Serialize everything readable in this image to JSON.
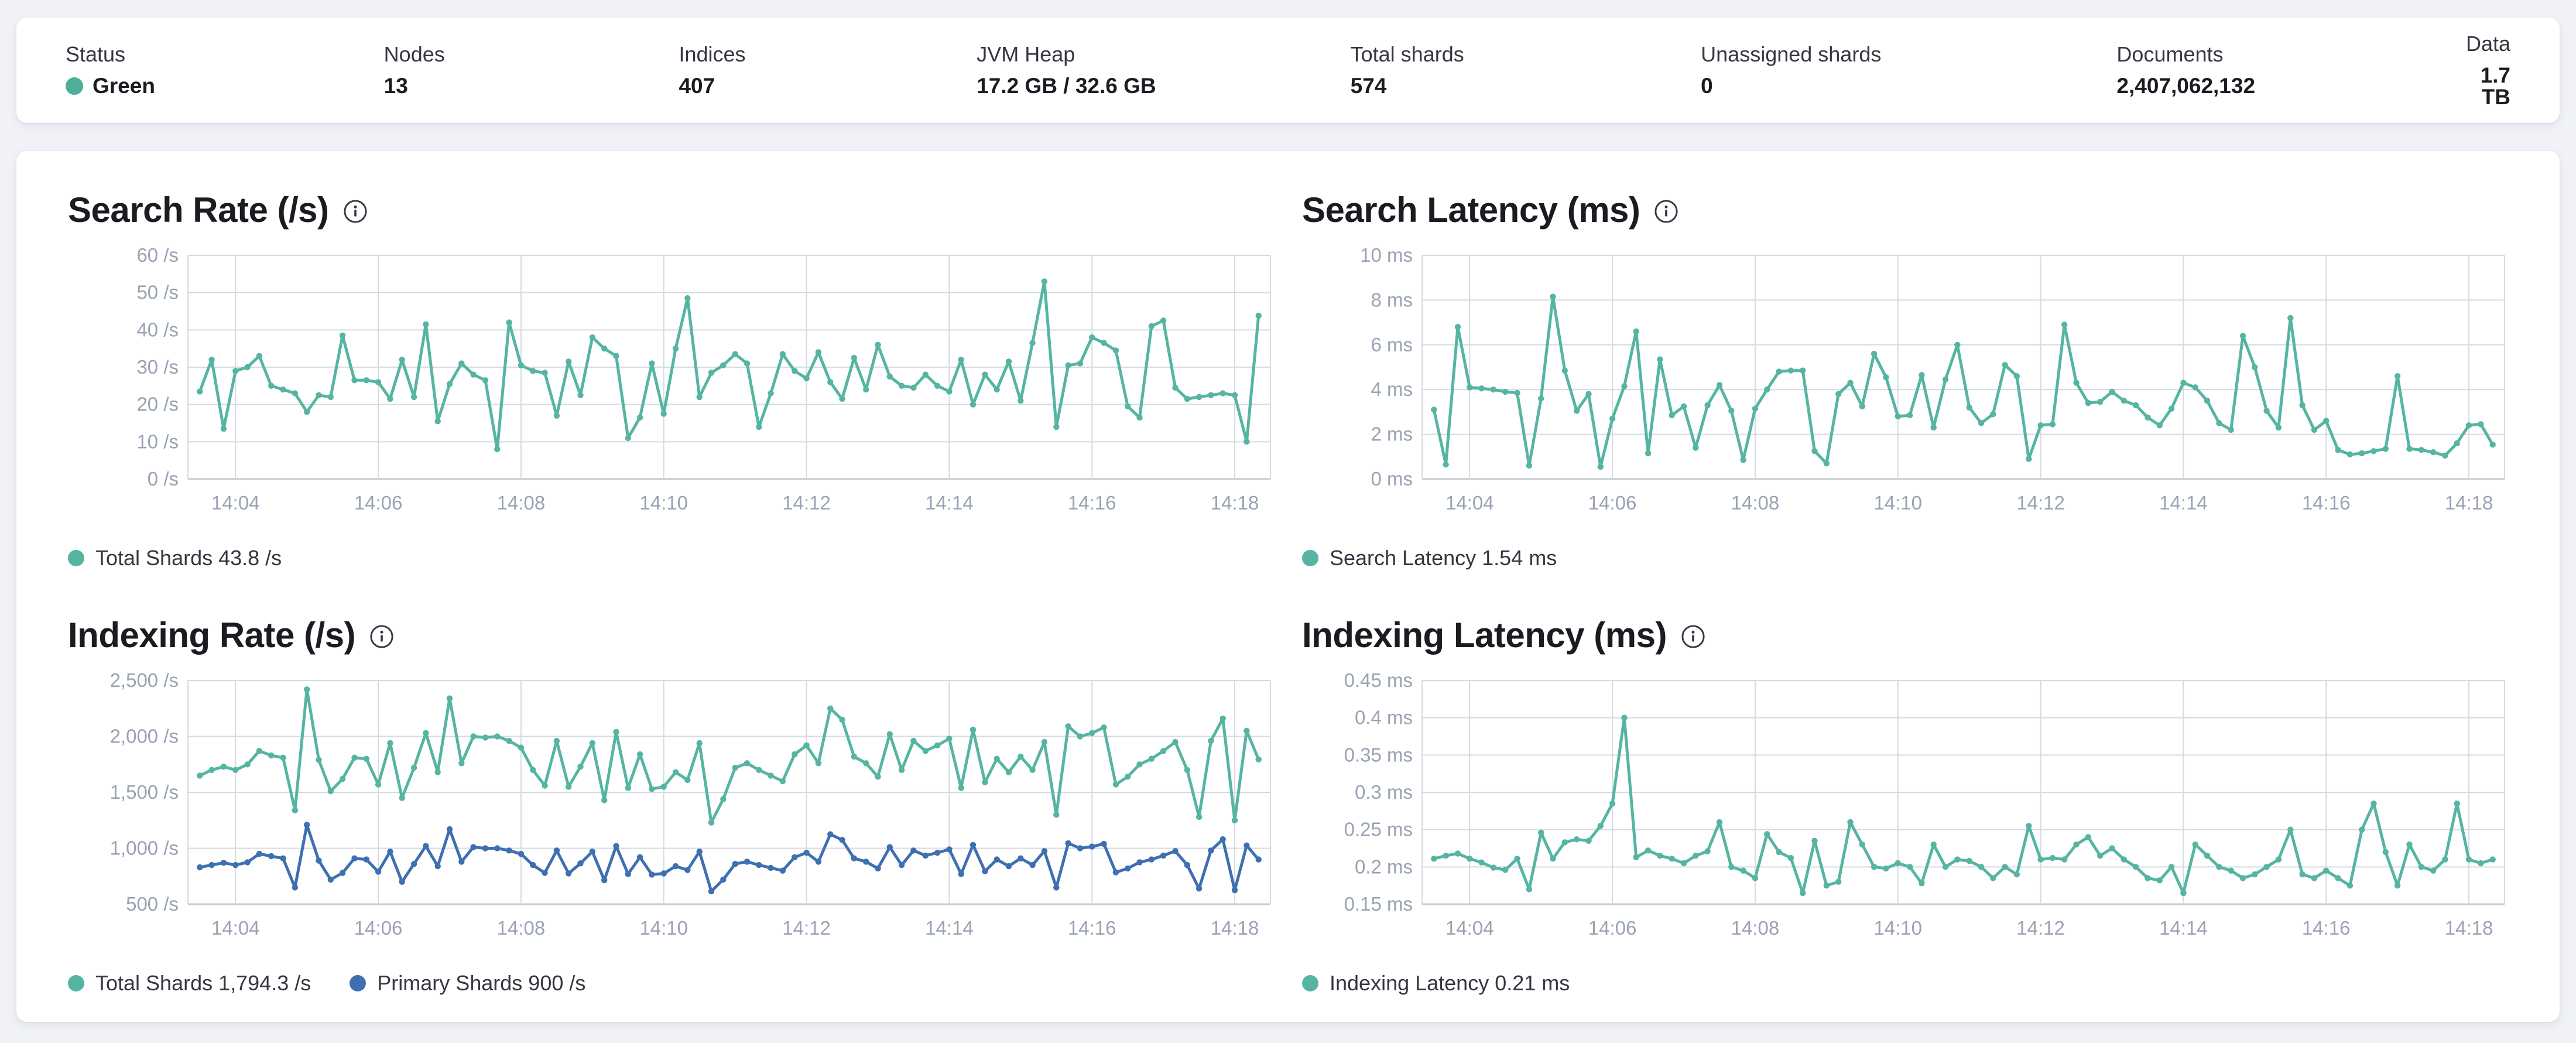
{
  "overview": {
    "stats": [
      {
        "label": "Status",
        "value": "Green",
        "has_dot": true
      },
      {
        "label": "Nodes",
        "value": "13"
      },
      {
        "label": "Indices",
        "value": "407"
      },
      {
        "label": "JVM Heap",
        "value": "17.2 GB / 32.6 GB"
      },
      {
        "label": "Total shards",
        "value": "574"
      },
      {
        "label": "Unassigned shards",
        "value": "0"
      },
      {
        "label": "Documents",
        "value": "2,407,062,132"
      },
      {
        "label": "Data",
        "value": "1.7 TB"
      }
    ],
    "status_color": "#4dae9a"
  },
  "colors": {
    "teal": "#55b5a2",
    "blue": "#3e6fb0",
    "grid": "#d6dae1",
    "axis_line": "#c4cad4",
    "axis_text": "#98a2b3",
    "legend_text": "#343741",
    "title_text": "#1a1c21"
  },
  "icons": {
    "info": "info-in-circle"
  },
  "chart_data": [
    {
      "type": "line",
      "id": "search_rate",
      "title": "Search Rate (/s)",
      "xlabel": "",
      "ylabel": "/s",
      "ylim": [
        0,
        60
      ],
      "grid": true,
      "legend_position": "bottom",
      "y_tick_labels": [
        "0 /s",
        "10 /s",
        "20 /s",
        "30 /s",
        "40 /s",
        "50 /s",
        "60 /s"
      ],
      "x_tick_labels": [
        "14:04",
        "14:06",
        "14:08",
        "14:10",
        "14:12",
        "14:14",
        "14:16",
        "14:18"
      ],
      "x_tick_indices": [
        3,
        15,
        27,
        39,
        51,
        63,
        75,
        87
      ],
      "series": [
        {
          "name": "Total Shards",
          "legend": "Total Shards 43.8 /s",
          "current_value": "43.8 /s",
          "color_key": "teal",
          "values": [
            23.5,
            32,
            13.5,
            29,
            30,
            33,
            25,
            24,
            23,
            18,
            22.5,
            22,
            38.5,
            26.5,
            26.5,
            26,
            21.5,
            32,
            22,
            41.5,
            15.5,
            25.5,
            31,
            28,
            26.5,
            8,
            42,
            30.5,
            29,
            28.5,
            17,
            31.5,
            22.5,
            38,
            35,
            33,
            11,
            16.5,
            31,
            17.5,
            35,
            48.5,
            22,
            28.5,
            30.5,
            33.5,
            31,
            14,
            23,
            33.5,
            29,
            27,
            34,
            26,
            21.5,
            32.5,
            24,
            36,
            27.5,
            25,
            24.5,
            28,
            25,
            23.5,
            32,
            20,
            28,
            24,
            31.5,
            21,
            36.5,
            53,
            14,
            30.5,
            31,
            38,
            36.5,
            34.5,
            19.5,
            16.5,
            41,
            42.5,
            24.5,
            21.5,
            22,
            22.5,
            23,
            22.5,
            10,
            43.8
          ]
        }
      ]
    },
    {
      "type": "line",
      "id": "search_latency",
      "title": "Search Latency (ms)",
      "xlabel": "",
      "ylabel": "ms",
      "ylim": [
        0,
        10
      ],
      "grid": true,
      "legend_position": "bottom",
      "y_tick_labels": [
        "0 ms",
        "2 ms",
        "4 ms",
        "6 ms",
        "8 ms",
        "10 ms"
      ],
      "x_tick_labels": [
        "14:04",
        "14:06",
        "14:08",
        "14:10",
        "14:12",
        "14:14",
        "14:16",
        "14:18"
      ],
      "x_tick_indices": [
        3,
        15,
        27,
        39,
        51,
        63,
        75,
        87
      ],
      "series": [
        {
          "name": "Search Latency",
          "legend": "Search Latency 1.54 ms",
          "current_value": "1.54 ms",
          "color_key": "teal",
          "values": [
            3.1,
            0.65,
            6.8,
            4.1,
            4.05,
            4.0,
            3.9,
            3.85,
            0.6,
            3.6,
            8.15,
            4.85,
            3.05,
            3.8,
            0.55,
            2.7,
            4.15,
            6.6,
            1.15,
            5.35,
            2.85,
            3.25,
            1.4,
            3.3,
            4.2,
            3.05,
            0.85,
            3.15,
            4.0,
            4.8,
            4.85,
            4.85,
            1.25,
            0.7,
            3.8,
            4.3,
            3.25,
            5.6,
            4.55,
            2.8,
            2.85,
            4.65,
            2.3,
            4.45,
            6.0,
            3.2,
            2.5,
            2.9,
            5.1,
            4.6,
            0.9,
            2.4,
            2.45,
            6.9,
            4.3,
            3.4,
            3.45,
            3.9,
            3.5,
            3.3,
            2.75,
            2.4,
            3.15,
            4.3,
            4.1,
            3.5,
            2.5,
            2.2,
            6.4,
            5.0,
            3.05,
            2.3,
            7.2,
            3.3,
            2.2,
            2.6,
            1.3,
            1.1,
            1.15,
            1.25,
            1.35,
            4.6,
            1.35,
            1.3,
            1.2,
            1.05,
            1.6,
            2.4,
            2.45,
            1.54
          ]
        }
      ]
    },
    {
      "type": "line",
      "id": "indexing_rate",
      "title": "Indexing Rate (/s)",
      "xlabel": "",
      "ylabel": "/s",
      "ylim": [
        500,
        2500
      ],
      "grid": true,
      "legend_position": "bottom",
      "y_tick_labels": [
        "500 /s",
        "1,000 /s",
        "1,500 /s",
        "2,000 /s",
        "2,500 /s"
      ],
      "x_tick_labels": [
        "14:04",
        "14:06",
        "14:08",
        "14:10",
        "14:12",
        "14:14",
        "14:16",
        "14:18"
      ],
      "x_tick_indices": [
        3,
        15,
        27,
        39,
        51,
        63,
        75,
        87
      ],
      "series": [
        {
          "name": "Total Shards",
          "legend": "Total Shards 1,794.3 /s",
          "current_value": "1,794.3 /s",
          "color_key": "teal",
          "values": [
            1650,
            1700,
            1730,
            1700,
            1750,
            1870,
            1830,
            1810,
            1340,
            2420,
            1790,
            1510,
            1620,
            1810,
            1800,
            1570,
            1940,
            1450,
            1720,
            2030,
            1680,
            2340,
            1760,
            2000,
            1990,
            2000,
            1960,
            1900,
            1700,
            1560,
            1960,
            1550,
            1730,
            1940,
            1430,
            2040,
            1540,
            1840,
            1530,
            1550,
            1680,
            1610,
            1940,
            1230,
            1440,
            1720,
            1760,
            1700,
            1650,
            1600,
            1840,
            1920,
            1760,
            2250,
            2150,
            1820,
            1760,
            1640,
            2020,
            1700,
            1960,
            1870,
            1920,
            1980,
            1540,
            2060,
            1590,
            1800,
            1680,
            1820,
            1700,
            1950,
            1300,
            2090,
            2000,
            2030,
            2080,
            1570,
            1640,
            1750,
            1800,
            1870,
            1950,
            1700,
            1280,
            1960,
            2160,
            1250,
            2050,
            1794.3
          ]
        },
        {
          "name": "Primary Shards",
          "legend": "Primary Shards 900 /s",
          "current_value": "900 /s",
          "color_key": "blue",
          "values": [
            830,
            850,
            870,
            850,
            875,
            950,
            930,
            910,
            650,
            1210,
            890,
            720,
            780,
            910,
            900,
            790,
            970,
            700,
            860,
            1020,
            840,
            1170,
            880,
            1010,
            1000,
            1000,
            980,
            950,
            850,
            780,
            980,
            775,
            865,
            970,
            715,
            1020,
            770,
            920,
            765,
            775,
            840,
            805,
            970,
            615,
            720,
            860,
            880,
            850,
            825,
            800,
            920,
            960,
            880,
            1125,
            1075,
            910,
            880,
            820,
            1010,
            850,
            980,
            935,
            960,
            990,
            770,
            1030,
            795,
            900,
            840,
            910,
            850,
            975,
            650,
            1045,
            1000,
            1015,
            1040,
            785,
            820,
            875,
            900,
            935,
            975,
            850,
            640,
            980,
            1080,
            625,
            1025,
            900
          ]
        }
      ]
    },
    {
      "type": "line",
      "id": "indexing_latency",
      "title": "Indexing Latency (ms)",
      "xlabel": "",
      "ylabel": "ms",
      "ylim": [
        0.15,
        0.45
      ],
      "grid": true,
      "legend_position": "bottom",
      "y_tick_labels": [
        "0.15 ms",
        "0.2 ms",
        "0.25 ms",
        "0.3 ms",
        "0.35 ms",
        "0.4 ms",
        "0.45 ms"
      ],
      "x_tick_labels": [
        "14:04",
        "14:06",
        "14:08",
        "14:10",
        "14:12",
        "14:14",
        "14:16",
        "14:18"
      ],
      "x_tick_indices": [
        3,
        15,
        27,
        39,
        51,
        63,
        75,
        87
      ],
      "series": [
        {
          "name": "Indexing Latency",
          "legend": "Indexing Latency 0.21 ms",
          "current_value": "0.21 ms",
          "color_key": "teal",
          "values": [
            0.211,
            0.215,
            0.218,
            0.211,
            0.206,
            0.199,
            0.196,
            0.211,
            0.17,
            0.246,
            0.211,
            0.233,
            0.237,
            0.235,
            0.255,
            0.285,
            0.4,
            0.213,
            0.222,
            0.215,
            0.211,
            0.205,
            0.215,
            0.221,
            0.26,
            0.2,
            0.195,
            0.185,
            0.244,
            0.22,
            0.212,
            0.165,
            0.235,
            0.175,
            0.18,
            0.26,
            0.23,
            0.2,
            0.198,
            0.205,
            0.2,
            0.178,
            0.23,
            0.2,
            0.21,
            0.208,
            0.2,
            0.185,
            0.2,
            0.19,
            0.255,
            0.21,
            0.212,
            0.21,
            0.23,
            0.24,
            0.215,
            0.225,
            0.21,
            0.2,
            0.185,
            0.182,
            0.2,
            0.165,
            0.23,
            0.215,
            0.2,
            0.195,
            0.185,
            0.19,
            0.2,
            0.21,
            0.25,
            0.19,
            0.185,
            0.195,
            0.185,
            0.175,
            0.25,
            0.285,
            0.22,
            0.175,
            0.23,
            0.2,
            0.195,
            0.21,
            0.285,
            0.21,
            0.205,
            0.21
          ]
        }
      ]
    }
  ]
}
